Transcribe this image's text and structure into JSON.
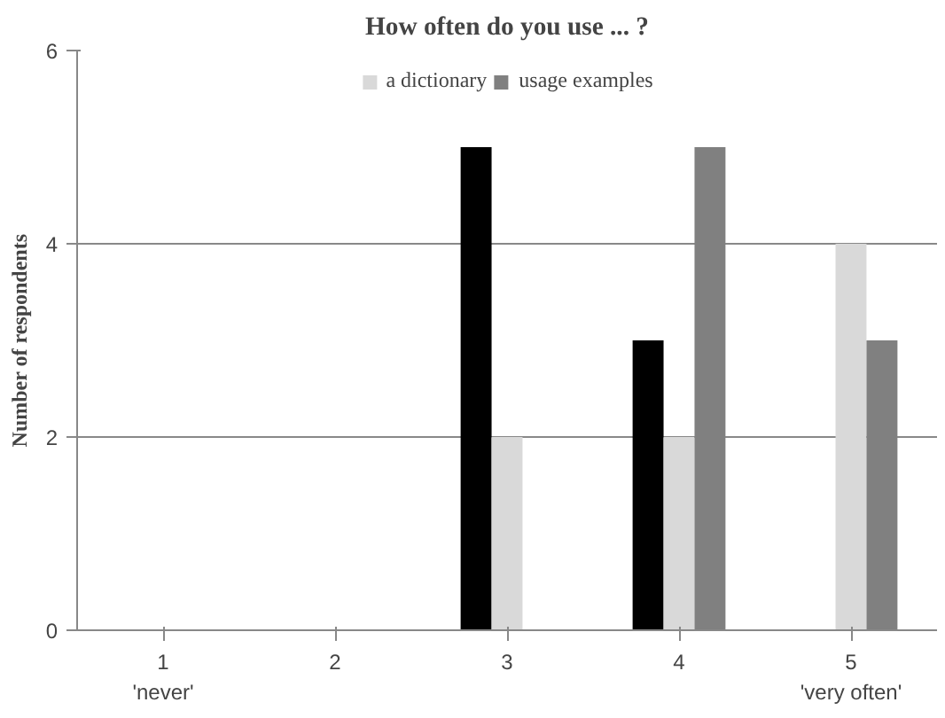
{
  "chart_data": {
    "type": "bar",
    "title": "How often do you use ... ?",
    "ylabel": "Number of respondents",
    "categories": [
      "1",
      "2",
      "3",
      "4",
      "5"
    ],
    "annotations": [
      "'never'",
      "'very often'"
    ],
    "series": [
      {
        "color": "#000000",
        "values": [
          0,
          0,
          5,
          3,
          0
        ]
      },
      {
        "name": "a dictionary",
        "color": "#d9d9d9",
        "values": [
          0,
          0,
          2,
          2,
          4
        ]
      },
      {
        "name": "usage examples",
        "color": "#808080",
        "values": [
          0,
          0,
          0,
          5,
          3
        ]
      }
    ],
    "ylim": [
      0,
      6
    ],
    "yticks": [
      0,
      2,
      4,
      6
    ],
    "grid": "y",
    "legend": "top"
  }
}
